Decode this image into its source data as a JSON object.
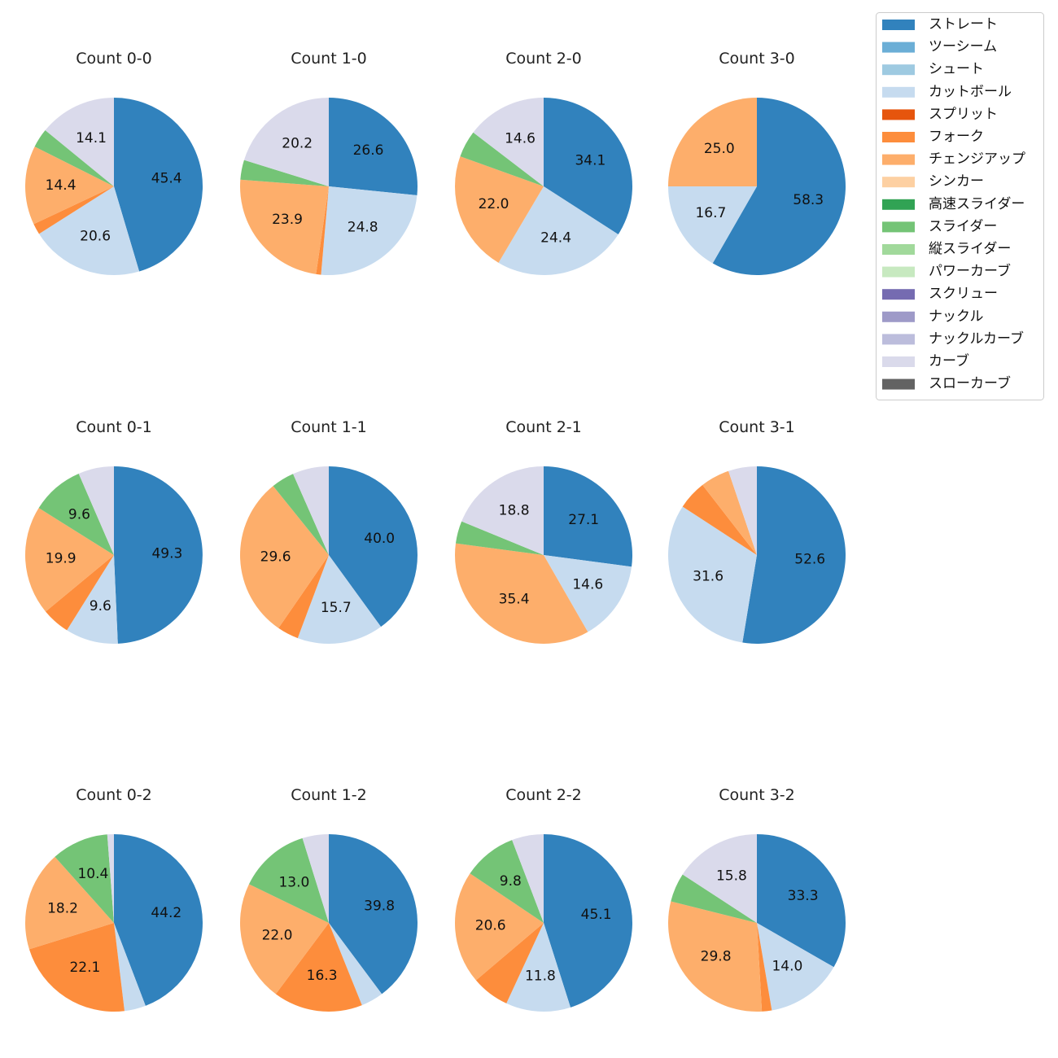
{
  "legend": {
    "entries": [
      {
        "name": "ストレート",
        "color": "#3182bd"
      },
      {
        "name": "ツーシーム",
        "color": "#6baed6"
      },
      {
        "name": "シュート",
        "color": "#9ecae1"
      },
      {
        "name": "カットボール",
        "color": "#c6dbef"
      },
      {
        "name": "スプリット",
        "color": "#e6550d"
      },
      {
        "name": "フォーク",
        "color": "#fd8d3c"
      },
      {
        "name": "チェンジアップ",
        "color": "#fdae6b"
      },
      {
        "name": "シンカー",
        "color": "#fdd0a2"
      },
      {
        "name": "高速スライダー",
        "color": "#31a354"
      },
      {
        "name": "スライダー",
        "color": "#74c476"
      },
      {
        "name": "縦スライダー",
        "color": "#a1d99b"
      },
      {
        "name": "パワーカーブ",
        "color": "#c7e9c0"
      },
      {
        "name": "スクリュー",
        "color": "#756bb1"
      },
      {
        "name": "ナックル",
        "color": "#9e9ac8"
      },
      {
        "name": "ナックルカーブ",
        "color": "#bcbddc"
      },
      {
        "name": "カーブ",
        "color": "#dadaeb"
      },
      {
        "name": "スローカーブ",
        "color": "#636363"
      }
    ]
  },
  "chart_data": [
    {
      "type": "pie",
      "title": "Count 0-0",
      "slices": [
        {
          "pitch": "ストレート",
          "value": 45.4
        },
        {
          "pitch": "カットボール",
          "value": 20.6
        },
        {
          "pitch": "フォーク",
          "value": 2.0
        },
        {
          "pitch": "チェンジアップ",
          "value": 14.4
        },
        {
          "pitch": "スライダー",
          "value": 3.5
        },
        {
          "pitch": "カーブ",
          "value": 14.1
        }
      ]
    },
    {
      "type": "pie",
      "title": "Count 1-0",
      "slices": [
        {
          "pitch": "ストレート",
          "value": 26.6
        },
        {
          "pitch": "カットボール",
          "value": 24.8
        },
        {
          "pitch": "フォーク",
          "value": 0.9
        },
        {
          "pitch": "チェンジアップ",
          "value": 23.9
        },
        {
          "pitch": "スライダー",
          "value": 3.6
        },
        {
          "pitch": "カーブ",
          "value": 20.2
        }
      ]
    },
    {
      "type": "pie",
      "title": "Count 2-0",
      "slices": [
        {
          "pitch": "ストレート",
          "value": 34.1
        },
        {
          "pitch": "カットボール",
          "value": 24.4
        },
        {
          "pitch": "チェンジアップ",
          "value": 22.0
        },
        {
          "pitch": "スライダー",
          "value": 4.9
        },
        {
          "pitch": "カーブ",
          "value": 14.6
        }
      ]
    },
    {
      "type": "pie",
      "title": "Count 3-0",
      "slices": [
        {
          "pitch": "ストレート",
          "value": 58.3
        },
        {
          "pitch": "カットボール",
          "value": 16.7
        },
        {
          "pitch": "チェンジアップ",
          "value": 25.0
        }
      ]
    },
    {
      "type": "pie",
      "title": "Count 0-1",
      "slices": [
        {
          "pitch": "ストレート",
          "value": 49.3
        },
        {
          "pitch": "カットボール",
          "value": 9.6
        },
        {
          "pitch": "フォーク",
          "value": 5.1
        },
        {
          "pitch": "チェンジアップ",
          "value": 19.9
        },
        {
          "pitch": "スライダー",
          "value": 9.6
        },
        {
          "pitch": "カーブ",
          "value": 6.5
        }
      ]
    },
    {
      "type": "pie",
      "title": "Count 1-1",
      "slices": [
        {
          "pitch": "ストレート",
          "value": 40.0
        },
        {
          "pitch": "カットボール",
          "value": 15.7
        },
        {
          "pitch": "フォーク",
          "value": 3.9
        },
        {
          "pitch": "チェンジアップ",
          "value": 29.6
        },
        {
          "pitch": "スライダー",
          "value": 4.2
        },
        {
          "pitch": "カーブ",
          "value": 6.6
        }
      ]
    },
    {
      "type": "pie",
      "title": "Count 2-1",
      "slices": [
        {
          "pitch": "ストレート",
          "value": 27.1
        },
        {
          "pitch": "カットボール",
          "value": 14.6
        },
        {
          "pitch": "チェンジアップ",
          "value": 35.4
        },
        {
          "pitch": "スライダー",
          "value": 4.1
        },
        {
          "pitch": "カーブ",
          "value": 18.8
        }
      ]
    },
    {
      "type": "pie",
      "title": "Count 3-1",
      "slices": [
        {
          "pitch": "ストレート",
          "value": 52.6
        },
        {
          "pitch": "カットボール",
          "value": 31.6
        },
        {
          "pitch": "フォーク",
          "value": 5.3
        },
        {
          "pitch": "チェンジアップ",
          "value": 5.3
        },
        {
          "pitch": "カーブ",
          "value": 5.2
        }
      ]
    },
    {
      "type": "pie",
      "title": "Count 0-2",
      "slices": [
        {
          "pitch": "ストレート",
          "value": 44.2
        },
        {
          "pitch": "カットボール",
          "value": 3.9
        },
        {
          "pitch": "フォーク",
          "value": 22.1
        },
        {
          "pitch": "チェンジアップ",
          "value": 18.2
        },
        {
          "pitch": "スライダー",
          "value": 10.4
        },
        {
          "pitch": "カーブ",
          "value": 1.2
        }
      ]
    },
    {
      "type": "pie",
      "title": "Count 1-2",
      "slices": [
        {
          "pitch": "ストレート",
          "value": 39.8
        },
        {
          "pitch": "カットボール",
          "value": 4.1
        },
        {
          "pitch": "フォーク",
          "value": 16.3
        },
        {
          "pitch": "チェンジアップ",
          "value": 22.0
        },
        {
          "pitch": "スライダー",
          "value": 13.0
        },
        {
          "pitch": "カーブ",
          "value": 4.8
        }
      ]
    },
    {
      "type": "pie",
      "title": "Count 2-2",
      "slices": [
        {
          "pitch": "ストレート",
          "value": 45.1
        },
        {
          "pitch": "カットボール",
          "value": 11.8
        },
        {
          "pitch": "フォーク",
          "value": 6.9
        },
        {
          "pitch": "チェンジアップ",
          "value": 20.6
        },
        {
          "pitch": "スライダー",
          "value": 9.8
        },
        {
          "pitch": "カーブ",
          "value": 5.8
        }
      ]
    },
    {
      "type": "pie",
      "title": "Count 3-2",
      "slices": [
        {
          "pitch": "ストレート",
          "value": 33.3
        },
        {
          "pitch": "カットボール",
          "value": 14.0
        },
        {
          "pitch": "フォーク",
          "value": 1.8
        },
        {
          "pitch": "チェンジアップ",
          "value": 29.8
        },
        {
          "pitch": "スライダー",
          "value": 5.3
        },
        {
          "pitch": "カーブ",
          "value": 15.8
        }
      ]
    }
  ]
}
